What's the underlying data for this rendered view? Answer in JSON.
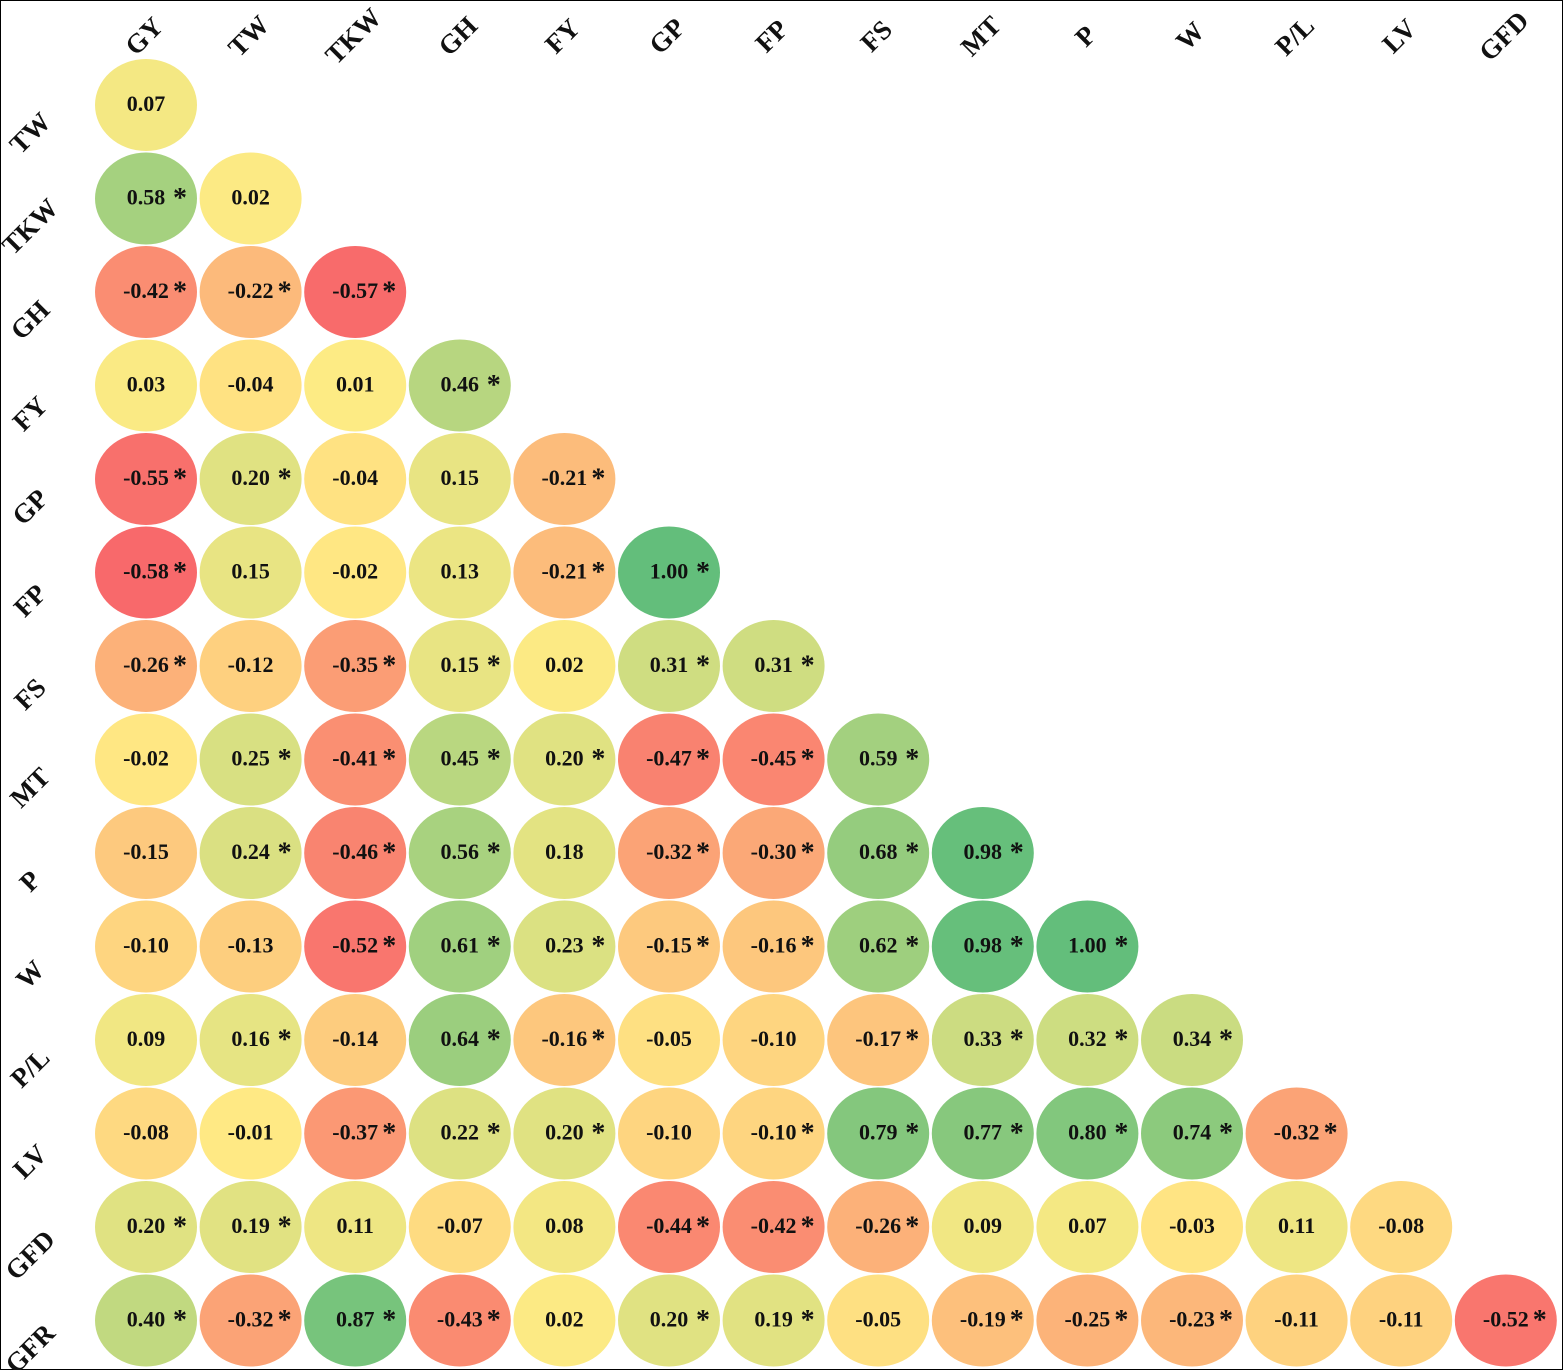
{
  "chart_data": {
    "type": "heatmap",
    "title": "",
    "column_labels": [
      "GY",
      "TW",
      "TKW",
      "GH",
      "FY",
      "GP",
      "FP",
      "FS",
      "MT",
      "P",
      "W",
      "P/L",
      "LV",
      "GFD"
    ],
    "row_labels": [
      "TW",
      "TKW",
      "GH",
      "FY",
      "GP",
      "FP",
      "FS",
      "MT",
      "P",
      "W",
      "P/L",
      "LV",
      "GFD",
      "GFR"
    ],
    "shape": "lower-triangle circles",
    "color_scale": {
      "negative": "#f8696b",
      "zero": "#ffeb84",
      "positive": "#63be7b",
      "min": -0.58,
      "max": 1.0
    },
    "significance_marker": "*",
    "rows": [
      {
        "label": "TW",
        "values": [
          0.07
        ],
        "display": [
          "0.07"
        ],
        "significant": [
          false
        ]
      },
      {
        "label": "TKW",
        "values": [
          0.58,
          0.02
        ],
        "display": [
          "0.58",
          "0.02"
        ],
        "significant": [
          true,
          false
        ]
      },
      {
        "label": "GH",
        "values": [
          -0.42,
          -0.22,
          -0.57
        ],
        "display": [
          "-0.42",
          "-0.22",
          "-0.57"
        ],
        "significant": [
          true,
          true,
          true
        ]
      },
      {
        "label": "FY",
        "values": [
          0.03,
          -0.04,
          0.01,
          0.46
        ],
        "display": [
          "0.03",
          "-0.04",
          "0.01",
          "0.46"
        ],
        "significant": [
          false,
          false,
          false,
          true
        ]
      },
      {
        "label": "GP",
        "values": [
          -0.55,
          0.2,
          -0.04,
          0.15,
          -0.21
        ],
        "display": [
          "-0.55",
          "0.20",
          "-0.04",
          "0.15",
          "-0.21"
        ],
        "significant": [
          true,
          true,
          false,
          false,
          true
        ]
      },
      {
        "label": "FP",
        "values": [
          -0.58,
          0.15,
          -0.02,
          0.13,
          -0.21,
          1.0
        ],
        "display": [
          "-0.58",
          "0.15",
          "-0.02",
          "0.13",
          "-0.21",
          "1.00"
        ],
        "significant": [
          true,
          false,
          false,
          false,
          true,
          true
        ]
      },
      {
        "label": "FS",
        "values": [
          -0.26,
          -0.12,
          -0.35,
          0.15,
          0.02,
          0.31,
          0.31
        ],
        "display": [
          "-0.26",
          "-0.12",
          "-0.35",
          "0.15",
          "0.02",
          "0.31",
          "0.31"
        ],
        "significant": [
          true,
          false,
          true,
          true,
          false,
          true,
          true
        ]
      },
      {
        "label": "MT",
        "values": [
          -0.02,
          0.25,
          -0.41,
          0.45,
          0.2,
          -0.47,
          -0.45,
          0.59
        ],
        "display": [
          "-0.02",
          "0.25",
          "-0.41",
          "0.45",
          "0.20",
          "-0.47",
          "-0.45",
          "0.59"
        ],
        "significant": [
          false,
          true,
          true,
          true,
          true,
          true,
          true,
          true
        ]
      },
      {
        "label": "P",
        "values": [
          -0.15,
          0.24,
          -0.46,
          0.56,
          0.18,
          -0.32,
          -0.3,
          0.68,
          0.98
        ],
        "display": [
          "-0.15",
          "0.24",
          "-0.46",
          "0.56",
          "0.18",
          "-0.32",
          "-0.30",
          "0.68",
          "0.98"
        ],
        "significant": [
          false,
          true,
          true,
          true,
          false,
          true,
          true,
          true,
          true
        ]
      },
      {
        "label": "W",
        "values": [
          -0.1,
          -0.13,
          -0.52,
          0.61,
          0.23,
          -0.15,
          -0.16,
          0.62,
          0.98,
          1.0
        ],
        "display": [
          "-0.10",
          "-0.13",
          "-0.52",
          "0.61",
          "0.23",
          "-0.15",
          "-0.16",
          "0.62",
          "0.98",
          "1.00"
        ],
        "significant": [
          false,
          false,
          true,
          true,
          true,
          true,
          true,
          true,
          true,
          true
        ]
      },
      {
        "label": "P/L",
        "values": [
          0.09,
          0.16,
          -0.14,
          0.64,
          -0.16,
          -0.05,
          -0.1,
          -0.17,
          0.33,
          0.32,
          0.34
        ],
        "display": [
          "0.09",
          "0.16",
          "-0.14",
          "0.64",
          "-0.16",
          "-0.05",
          "-0.10",
          "-0.17",
          "0.33",
          "0.32",
          "0.34"
        ],
        "significant": [
          false,
          true,
          false,
          true,
          true,
          false,
          false,
          true,
          true,
          true,
          true
        ]
      },
      {
        "label": "LV",
        "values": [
          -0.08,
          -0.01,
          -0.37,
          0.22,
          0.2,
          -0.1,
          -0.1,
          0.79,
          0.77,
          0.8,
          0.74,
          -0.32
        ],
        "display": [
          "-0.08",
          "-0.01",
          "-0.37",
          "0.22",
          "0.20",
          "-0.10",
          "-0.10",
          "0.79",
          "0.77",
          "0.80",
          "0.74",
          "-0.32"
        ],
        "significant": [
          false,
          false,
          true,
          true,
          true,
          false,
          true,
          true,
          true,
          true,
          true,
          true
        ]
      },
      {
        "label": "GFD",
        "values": [
          0.2,
          0.19,
          0.11,
          -0.07,
          0.08,
          -0.44,
          -0.42,
          -0.26,
          0.09,
          0.07,
          -0.03,
          0.11,
          -0.08
        ],
        "display": [
          "0.20",
          "0.19",
          "0.11",
          "-0.07",
          "0.08",
          "-0.44",
          "-0.42",
          "-0.26",
          "0.09",
          "0.07",
          "-0.03",
          "0.11",
          "-0.08"
        ],
        "significant": [
          true,
          true,
          false,
          false,
          false,
          true,
          true,
          true,
          false,
          false,
          false,
          false,
          false
        ]
      },
      {
        "label": "GFR",
        "values": [
          0.4,
          -0.32,
          0.87,
          -0.43,
          0.02,
          0.2,
          0.19,
          -0.05,
          -0.19,
          -0.25,
          -0.23,
          -0.11,
          -0.11,
          -0.52
        ],
        "display": [
          "0.40",
          "-0.32",
          "0.87",
          "-0.43",
          "0.02",
          "0.20",
          "0.19",
          "-0.05",
          "-0.19",
          "-0.25",
          "-0.23",
          "-0.11",
          "-0.11",
          "-0.52"
        ],
        "significant": [
          true,
          true,
          true,
          true,
          false,
          true,
          true,
          false,
          true,
          true,
          true,
          false,
          false,
          true
        ]
      }
    ]
  }
}
